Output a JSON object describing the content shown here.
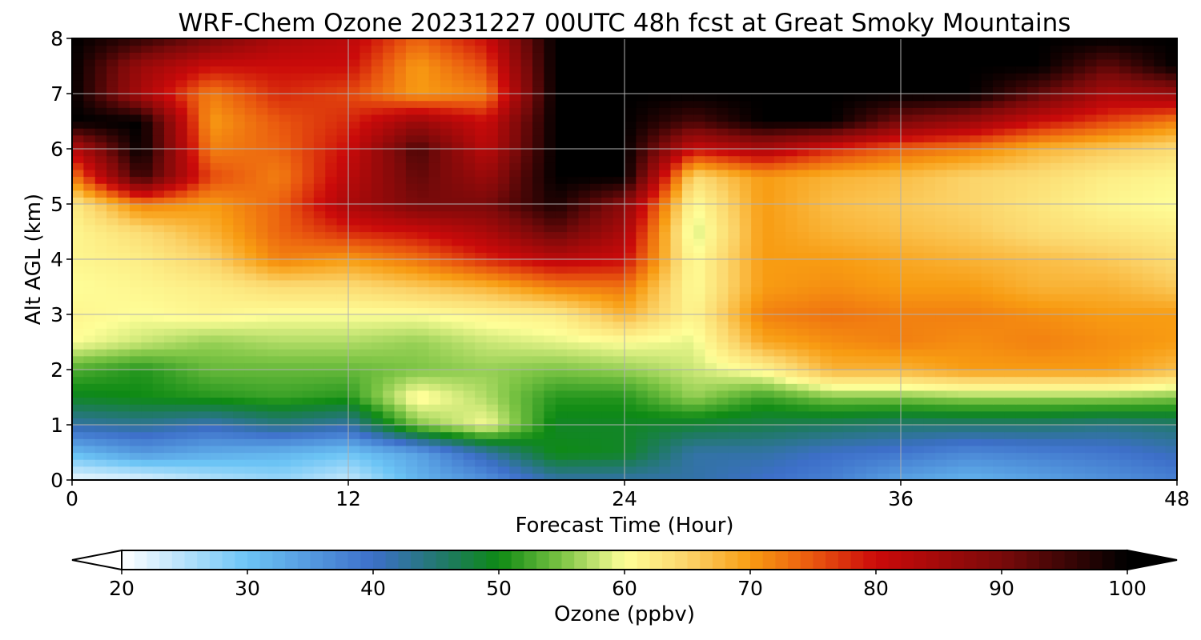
{
  "chart_data": {
    "type": "heatmap",
    "title": "WRF-Chem Ozone  20231227 00UTC 48h fcst at Great Smoky Mountains",
    "xlabel": "Forecast Time (Hour)",
    "ylabel": "Alt AGL (km)",
    "xlim": [
      0,
      48
    ],
    "ylim": [
      0,
      8
    ],
    "xticks": [
      0,
      12,
      24,
      36,
      48
    ],
    "yticks": [
      0,
      1,
      2,
      3,
      4,
      5,
      6,
      7,
      8
    ],
    "grid": true,
    "z_units": "ppbv",
    "x": [
      0,
      3,
      6,
      9,
      12,
      15,
      18,
      21,
      24,
      27,
      30,
      33,
      36,
      39,
      42,
      45,
      48
    ],
    "y": [
      0,
      0.5,
      1,
      1.5,
      2,
      2.5,
      3,
      3.5,
      4,
      4.5,
      5,
      5.5,
      6,
      6.5,
      7,
      7.5,
      8
    ],
    "z": [
      [
        21,
        22,
        25,
        27,
        24,
        32,
        36,
        42,
        42,
        42,
        40,
        38,
        34,
        32,
        34,
        36,
        38
      ],
      [
        31,
        35,
        33,
        32,
        30,
        34,
        42,
        50,
        49,
        42,
        42,
        40,
        39,
        37,
        38,
        39,
        41
      ],
      [
        42,
        43,
        41,
        44,
        42,
        55,
        60,
        49,
        49,
        48,
        47,
        46,
        45,
        45,
        45,
        44,
        45
      ],
      [
        49,
        50,
        51,
        52,
        51,
        61,
        57,
        51,
        51,
        56,
        52,
        55,
        55,
        56,
        56,
        56,
        55
      ],
      [
        53,
        51,
        54,
        54,
        54,
        55,
        56,
        55,
        56,
        58,
        61,
        68,
        68,
        70,
        70,
        70,
        67
      ],
      [
        60,
        58,
        56,
        57,
        57,
        56,
        58,
        59,
        60,
        59,
        69,
        71,
        72,
        71,
        72,
        71,
        70
      ],
      [
        61,
        60,
        61,
        60,
        60,
        60,
        61,
        62,
        68,
        61,
        72,
        73,
        72,
        72,
        71,
        70,
        70
      ],
      [
        60,
        61,
        62,
        64,
        64,
        66,
        68,
        72,
        73,
        60,
        70,
        71,
        70,
        70,
        68,
        68,
        66
      ],
      [
        61,
        62,
        65,
        72,
        70,
        73,
        78,
        82,
        80,
        60,
        70,
        70,
        69,
        68,
        67,
        66,
        64
      ],
      [
        61,
        64,
        68,
        74,
        78,
        80,
        84,
        92,
        84,
        58,
        70,
        68,
        67,
        66,
        64,
        63,
        62
      ],
      [
        62,
        72,
        70,
        74,
        84,
        90,
        90,
        98,
        88,
        60,
        70,
        67,
        66,
        65,
        63,
        61,
        60
      ],
      [
        72,
        96,
        76,
        72,
        82,
        92,
        86,
        100,
        100,
        64,
        70,
        68,
        67,
        65,
        64,
        62,
        61
      ],
      [
        82,
        100,
        72,
        74,
        80,
        94,
        82,
        100,
        100,
        80,
        84,
        78,
        74,
        72,
        68,
        66,
        64
      ],
      [
        100,
        100,
        70,
        75,
        78,
        86,
        80,
        100,
        100,
        94,
        100,
        100,
        90,
        86,
        80,
        76,
        72
      ],
      [
        100,
        84,
        72,
        78,
        76,
        70,
        72,
        100,
        100,
        100,
        100,
        100,
        100,
        100,
        92,
        84,
        86
      ],
      [
        100,
        86,
        80,
        80,
        80,
        70,
        76,
        100,
        100,
        100,
        100,
        100,
        100,
        100,
        100,
        92,
        100
      ],
      [
        100,
        96,
        90,
        84,
        82,
        74,
        80,
        100,
        100,
        100,
        100,
        100,
        100,
        100,
        100,
        100,
        100
      ]
    ],
    "colorbar": {
      "label": "Ozone  (ppbv)",
      "min": 20,
      "max": 100,
      "ticks": [
        20,
        30,
        40,
        50,
        60,
        70,
        80,
        90,
        100
      ],
      "extend": "both",
      "stops": [
        {
          "v": 20,
          "c": "#ffffff"
        },
        {
          "v": 30,
          "c": "#6cc4f5"
        },
        {
          "v": 40,
          "c": "#3d6fc9"
        },
        {
          "v": 46,
          "c": "#1e7a60"
        },
        {
          "v": 50,
          "c": "#0e8a14"
        },
        {
          "v": 55,
          "c": "#7cc444"
        },
        {
          "v": 60,
          "c": "#fefe98"
        },
        {
          "v": 65,
          "c": "#fbd46a"
        },
        {
          "v": 70,
          "c": "#f89c12"
        },
        {
          "v": 75,
          "c": "#e9570f"
        },
        {
          "v": 80,
          "c": "#cb0a0a"
        },
        {
          "v": 90,
          "c": "#7a0a0a"
        },
        {
          "v": 100,
          "c": "#000000"
        }
      ]
    }
  }
}
